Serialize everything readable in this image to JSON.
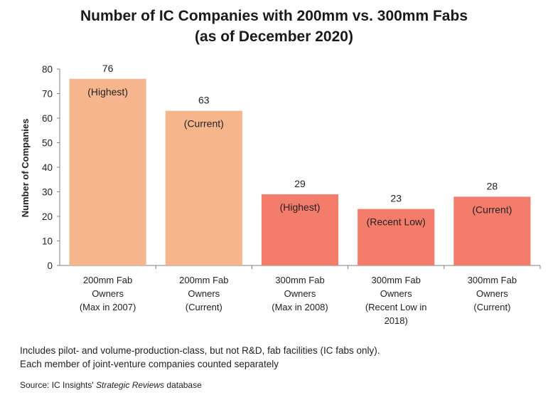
{
  "chart_data": {
    "type": "bar",
    "title": "Number of IC Companies with 200mm vs. 300mm Fabs",
    "subtitle": "(as of December 2020)",
    "xlabel": "",
    "ylabel": "Number of Companies",
    "ylim": [
      0,
      80
    ],
    "yticks": [
      0,
      10,
      20,
      30,
      40,
      50,
      60,
      70,
      80
    ],
    "grid": false,
    "legend": "none",
    "categories": [
      [
        "200mm Fab",
        "Owners",
        "(Max in 2007)"
      ],
      [
        "200mm Fab",
        "Owners",
        "(Current)"
      ],
      [
        "300mm Fab",
        "Owners",
        "(Max in 2008)"
      ],
      [
        "300mm Fab",
        "Owners",
        "(Recent Low in",
        "2018)"
      ],
      [
        "300mm Fab",
        "Owners",
        "(Current)"
      ]
    ],
    "values": [
      76,
      63,
      29,
      23,
      28
    ],
    "annotations": [
      "(Highest)",
      "(Current)",
      "(Highest)",
      "(Recent Low)",
      "(Current)"
    ],
    "colors": [
      "#f7b58e",
      "#f7b58e",
      "#f47c6a",
      "#f47c6a",
      "#f47c6a"
    ]
  },
  "footnotes": [
    "Includes pilot- and volume-production-class, but not R&D, fab facilities (IC fabs only).",
    "Each member of joint-venture companies counted separately"
  ],
  "source": {
    "prefix": "Source:  IC Insights' ",
    "italic": "Strategic Reviews",
    "suffix": " database"
  }
}
